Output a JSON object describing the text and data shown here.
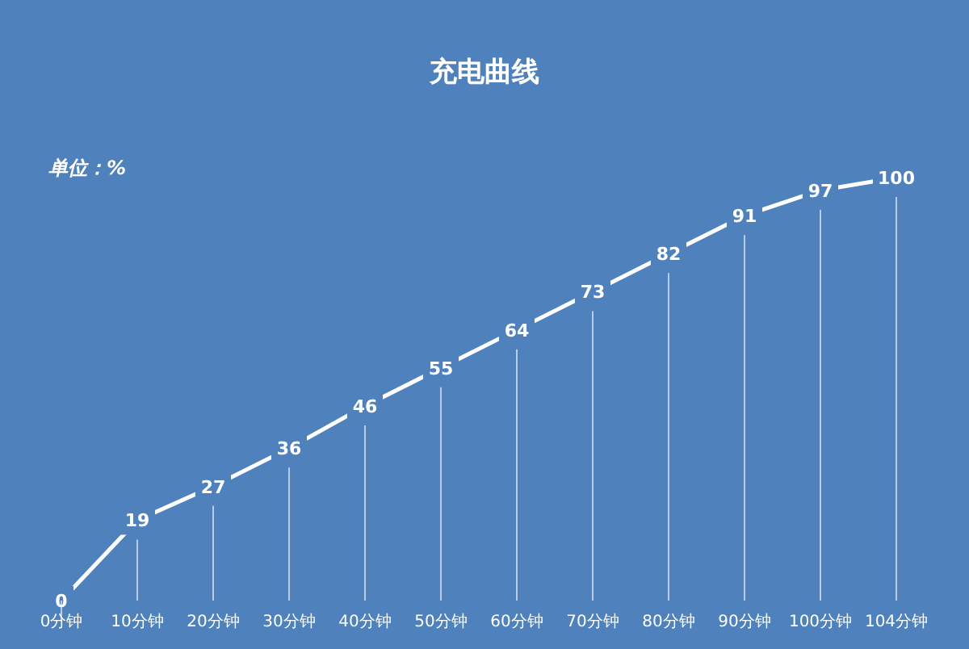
{
  "chart_data": {
    "type": "line",
    "title": "充电曲线",
    "ylabel": "单位：%",
    "categories": [
      "0分钟",
      "10分钟",
      "20分钟",
      "30分钟",
      "40分钟",
      "50分钟",
      "60分钟",
      "70分钟",
      "80分钟",
      "90分钟",
      "100分钟",
      "104分钟"
    ],
    "series": [
      {
        "color": "#ffffff",
        "values": [
          0,
          19,
          27,
          36,
          46,
          55,
          64,
          73,
          82,
          91,
          97,
          100
        ]
      }
    ],
    "data_labels": true,
    "grid": "x",
    "marker": "none",
    "line_style": "solid"
  }
}
